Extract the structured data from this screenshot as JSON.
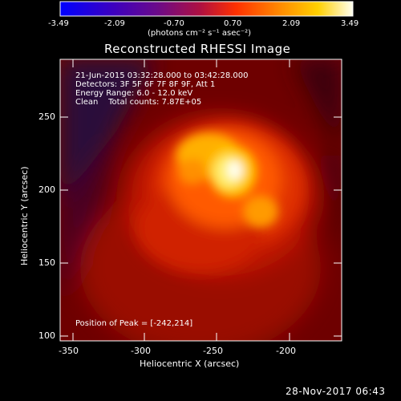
{
  "colorbar": {
    "ticks": [
      "-3.49",
      "-2.09",
      "-0.70",
      "0.70",
      "2.09",
      "3.49"
    ],
    "unit_label": "(photons cm⁻² s⁻¹ asec⁻²)"
  },
  "title": "Reconstructed RHESSI Image",
  "info_lines": [
    "21-Jun-2015 03:32:28.000 to 03:42:28.000",
    "Detectors: 3F 5F 6F 7F 8F 9F, Att 1",
    "Energy Range: 6.0 - 12.0 keV",
    "Clean    Total counts: 7.87E+05"
  ],
  "peak_text": "Position of Peak = [-242,214]",
  "axes": {
    "xlabel": "Heliocentric X (arcsec)",
    "ylabel": "Heliocentric Y (arcsec)",
    "xticks": [
      "-350",
      "-300",
      "-250",
      "-200"
    ],
    "yticks": [
      "250",
      "200",
      "150",
      "100"
    ]
  },
  "footer": "28-Nov-2017 06:43"
}
